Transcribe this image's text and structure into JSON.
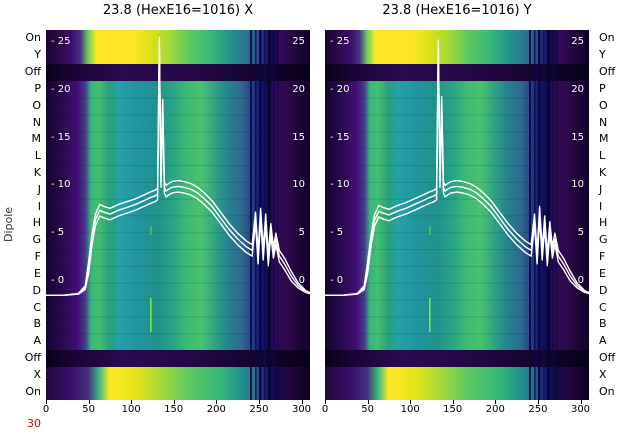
{
  "figure": {
    "ylabel": "Dipole",
    "corner_label": "30",
    "corner_label_color": "#cc0000",
    "row_labels": [
      "On",
      "Y",
      "Off",
      "P",
      "O",
      "N",
      "M",
      "L",
      "K",
      "J",
      "I",
      "H",
      "G",
      "F",
      "E",
      "D",
      "C",
      "B",
      "A",
      "Off",
      "X",
      "On"
    ],
    "plots": [
      {
        "title": "23.8 (HexE16=1016) X"
      },
      {
        "title": "23.8 (HexE16=1016) Y"
      }
    ]
  },
  "chart_data": [
    {
      "type": "heatmap",
      "title": "23.8 (HexE16=1016) X",
      "colormap": "viridis",
      "colormap_colors": [
        "#440154",
        "#46327e",
        "#365c8d",
        "#277f8e",
        "#1fa187",
        "#4ac16d",
        "#a0da39",
        "#fde725"
      ],
      "x_range": [
        0,
        310
      ],
      "x_ticks": [
        0,
        50,
        100,
        150,
        200,
        250,
        300
      ],
      "rows": [
        "On",
        "Y",
        "Off",
        "P",
        "O",
        "N",
        "M",
        "L",
        "K",
        "J",
        "I",
        "H",
        "G",
        "F",
        "E",
        "D",
        "C",
        "B",
        "A",
        "Off",
        "X",
        "On"
      ],
      "overlay_line": {
        "name": "profile X",
        "color": "#ffffff",
        "y_ticks": [
          25,
          20,
          15,
          10,
          5,
          0
        ],
        "y_range": [
          -3,
          27
        ],
        "x": [
          0,
          20,
          38,
          46,
          50,
          54,
          58,
          63,
          68,
          75,
          85,
          95,
          105,
          115,
          122,
          128,
          131,
          133,
          135,
          137,
          139,
          141,
          144,
          148,
          155,
          162,
          170,
          178,
          186,
          195,
          205,
          215,
          225,
          235,
          242,
          246,
          249,
          252,
          255,
          258,
          261,
          264,
          267,
          270,
          274,
          280,
          288,
          296,
          305,
          310
        ],
        "y": [
          -1.5,
          -1.5,
          -1.3,
          -0.5,
          2.0,
          5.0,
          7.0,
          8.0,
          7.8,
          7.6,
          8.0,
          8.3,
          8.6,
          9.0,
          9.3,
          9.5,
          9.7,
          25.5,
          11.0,
          19.0,
          10.4,
          10.0,
          10.2,
          10.4,
          10.5,
          10.4,
          10.2,
          9.8,
          9.2,
          8.4,
          7.2,
          6.0,
          5.0,
          4.2,
          3.8,
          7.2,
          3.0,
          7.6,
          3.4,
          7.0,
          2.8,
          6.0,
          3.6,
          5.0,
          3.2,
          2.4,
          1.0,
          -0.2,
          -1.0,
          -1.2
        ]
      }
    },
    {
      "type": "heatmap",
      "title": "23.8 (HexE16=1016) Y",
      "colormap": "viridis",
      "colormap_colors": [
        "#440154",
        "#46327e",
        "#365c8d",
        "#277f8e",
        "#1fa187",
        "#4ac16d",
        "#a0da39",
        "#fde725"
      ],
      "x_range": [
        0,
        310
      ],
      "x_ticks": [
        0,
        50,
        100,
        150,
        200,
        250,
        300
      ],
      "rows": [
        "On",
        "Y",
        "Off",
        "P",
        "O",
        "N",
        "M",
        "L",
        "K",
        "J",
        "I",
        "H",
        "G",
        "F",
        "E",
        "D",
        "C",
        "B",
        "A",
        "Off",
        "X",
        "On"
      ],
      "overlay_line": {
        "name": "profile Y",
        "color": "#ffffff",
        "y_ticks": [
          25,
          20,
          15,
          10,
          5,
          0
        ],
        "y_range": [
          -3,
          27
        ],
        "x": [
          0,
          20,
          38,
          46,
          50,
          54,
          58,
          63,
          68,
          75,
          85,
          95,
          105,
          115,
          122,
          128,
          131,
          133,
          135,
          137,
          139,
          141,
          144,
          148,
          155,
          162,
          170,
          178,
          186,
          195,
          205,
          215,
          225,
          235,
          242,
          246,
          249,
          252,
          255,
          258,
          261,
          264,
          267,
          270,
          274,
          280,
          288,
          296,
          305,
          310
        ],
        "y": [
          -1.5,
          -1.5,
          -1.3,
          -0.5,
          2.0,
          4.8,
          6.9,
          7.9,
          7.7,
          7.5,
          7.9,
          8.2,
          8.6,
          9.0,
          9.3,
          9.5,
          9.7,
          25.2,
          11.0,
          19.3,
          10.4,
          10.0,
          10.2,
          10.4,
          10.5,
          10.4,
          10.2,
          9.8,
          9.2,
          8.4,
          7.2,
          6.0,
          5.0,
          4.2,
          3.8,
          7.0,
          3.0,
          7.8,
          3.4,
          6.8,
          2.8,
          6.2,
          3.6,
          5.0,
          3.2,
          2.4,
          1.0,
          -0.2,
          -1.0,
          -1.2
        ]
      }
    }
  ]
}
